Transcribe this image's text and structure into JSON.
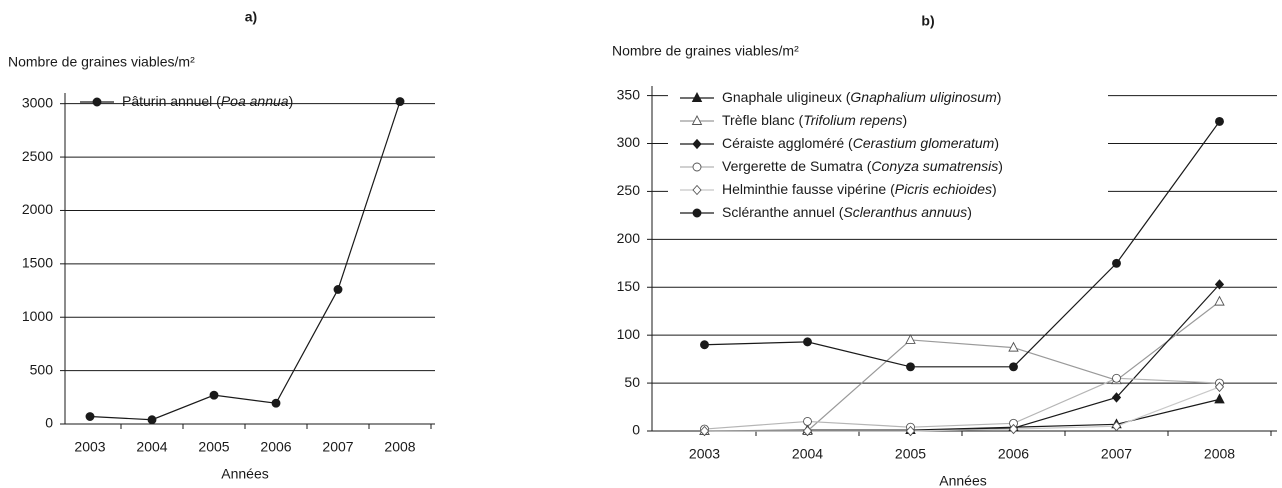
{
  "chart_data": [
    {
      "type": "line",
      "title": "a)",
      "y_label": "Nombre de graines viables/m²",
      "x_label": "Années",
      "categories": [
        "2003",
        "2004",
        "2005",
        "2006",
        "2007",
        "2008"
      ],
      "series": [
        {
          "name": "Pâturin annuel (Poa annua)",
          "color": "#1a1a1a",
          "marker": "circle",
          "marker_fill": "#1a1a1a",
          "values": [
            70,
            40,
            270,
            195,
            1260,
            3020
          ]
        }
      ],
      "ylim": [
        0,
        3100
      ],
      "yticks": [
        0,
        500,
        1000,
        1500,
        2000,
        2500,
        3000
      ],
      "grid": true
    },
    {
      "type": "line",
      "title": "b)",
      "y_label": "Nombre de graines viables/m²",
      "x_label": "Années",
      "categories": [
        "2003",
        "2004",
        "2005",
        "2006",
        "2007",
        "2008"
      ],
      "series": [
        {
          "name": "Gnaphale uligineux (Gnaphalium uliginosum)",
          "color": "#1a1a1a",
          "marker": "triangle",
          "marker_fill": "#1a1a1a",
          "values": [
            0,
            1,
            1,
            4,
            7,
            33
          ]
        },
        {
          "name": "Trèfle blanc (Trifolium repens)",
          "color": "#9a9a9a",
          "marker": "triangle",
          "marker_fill": "#ffffff",
          "values": [
            0,
            0,
            95,
            87,
            53,
            135
          ]
        },
        {
          "name": "Céraiste aggloméré (Cerastium glomeratum)",
          "color": "#1a1a1a",
          "marker": "diamond",
          "marker_fill": "#1a1a1a",
          "values": [
            0,
            0,
            0,
            3,
            35,
            153
          ]
        },
        {
          "name": "Vergerette de Sumatra (Conyza sumatrensis)",
          "color": "#b5b5b5",
          "marker": "circle",
          "marker_fill": "#ffffff",
          "values": [
            2,
            10,
            4,
            8,
            55,
            50
          ]
        },
        {
          "name": "Helminthie fausse vipérine (Picris echioides)",
          "color": "#c8c8c8",
          "marker": "diamond",
          "marker_fill": "#ffffff",
          "values": [
            0,
            0,
            0,
            2,
            5,
            46
          ]
        },
        {
          "name": "Scléranthe annuel (Scleranthus annuus)",
          "color": "#1a1a1a",
          "marker": "circle",
          "marker_fill": "#1a1a1a",
          "values": [
            90,
            93,
            67,
            67,
            175,
            323
          ]
        }
      ],
      "ylim": [
        0,
        360
      ],
      "yticks": [
        0,
        50,
        100,
        150,
        200,
        250,
        300,
        350
      ],
      "grid": true
    }
  ]
}
